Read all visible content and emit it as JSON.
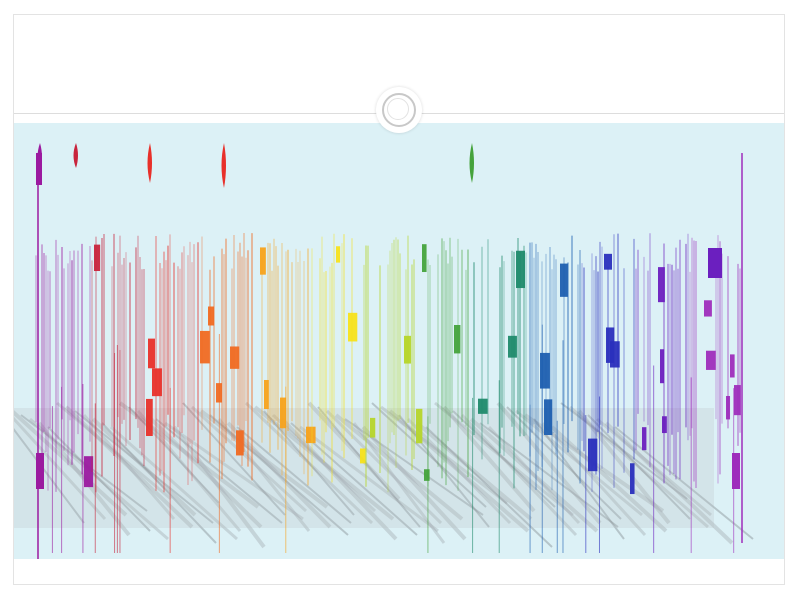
{
  "slide": {
    "title": "",
    "panel_color": "#dcf1f6",
    "frame_color": "#ffffff"
  },
  "spectrum_colors": [
    "#9b1aa0",
    "#c8243c",
    "#e8302a",
    "#f06a22",
    "#f7a21b",
    "#f7e11a",
    "#b6d52a",
    "#45a33c",
    "#1f8a6c",
    "#1d5fb0",
    "#2a2fbd",
    "#6b1fbf",
    "#9e2dbc"
  ],
  "icons": {
    "connector": "ring-connector-icon"
  }
}
